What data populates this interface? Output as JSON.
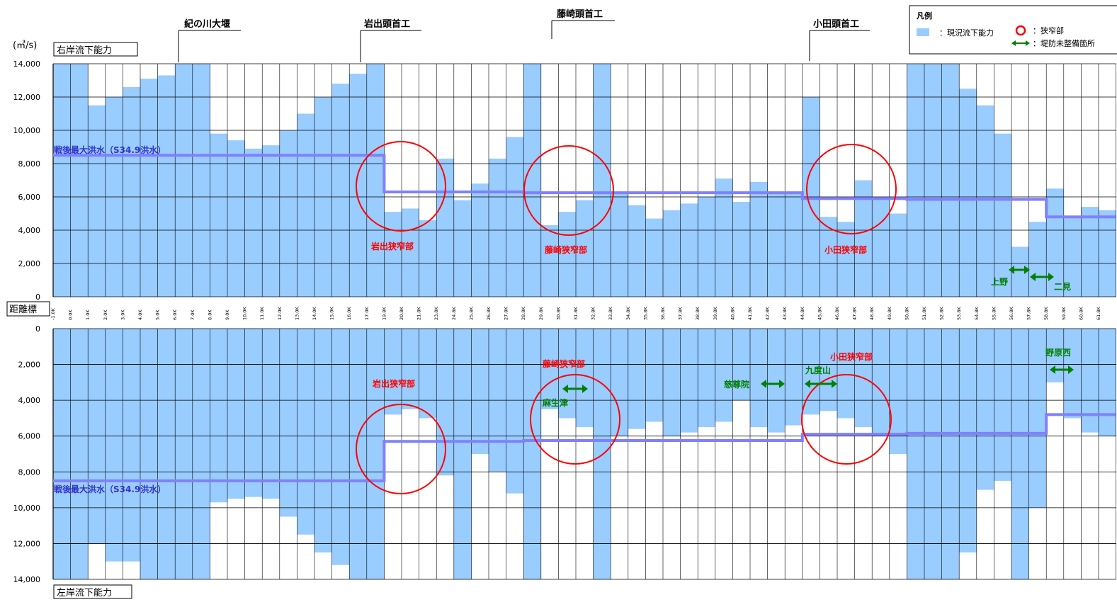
{
  "chart_data": [
    {
      "type": "bar",
      "name": "右岸",
      "panel_label": "右岸流下能力",
      "unit": "(㎥/s)",
      "ylim": [
        0,
        14000
      ],
      "y_ticks": [
        "0",
        "2,000",
        "4,000",
        "6,000",
        "8,000",
        "10,000",
        "12,000",
        "14,000"
      ],
      "x_label": "距離標",
      "x_ticks": [
        "-1.0K",
        "0.0K",
        "1.0K",
        "2.0K",
        "3.0K",
        "4.0K",
        "5.0K",
        "6.0K",
        "7.0K",
        "8.0K",
        "9.0K",
        "10.0K",
        "11.0K",
        "12.0K",
        "13.0K",
        "14.0K",
        "15.0K",
        "16.0K",
        "17.0K",
        "19.8K",
        "20.8K",
        "21.8K",
        "23.8K",
        "24.8K",
        "25.8K",
        "26.8K",
        "27.8K",
        "28.8K",
        "29.8K",
        "30.8K",
        "31.8K",
        "32.8K",
        "33.8K",
        "34.8K",
        "35.8K",
        "36.8K",
        "37.8K",
        "38.8K",
        "39.8K",
        "40.8K",
        "41.8K",
        "42.8K",
        "43.8K",
        "44.8K",
        "45.8K",
        "46.8K",
        "47.8K",
        "48.8K",
        "49.8K",
        "50.8K",
        "51.8K",
        "52.8K",
        "53.8K",
        "54.8K",
        "55.8K",
        "56.8K",
        "57.8K",
        "58.8K",
        "59.8K",
        "60.8K",
        "61.8K"
      ],
      "capacity": [
        14200,
        14200,
        11500,
        12000,
        12600,
        13100,
        13300,
        14200,
        14200,
        9800,
        9400,
        8900,
        9100,
        10000,
        11000,
        12000,
        12800,
        13400,
        14200,
        5100,
        5300,
        4600,
        8300,
        5800,
        6800,
        8300,
        9600,
        14200,
        4300,
        5100,
        5800,
        14200,
        6200,
        5500,
        4700,
        5200,
        5600,
        6000,
        7100,
        5700,
        6900,
        6300,
        6200,
        12000,
        4800,
        4500,
        7000,
        6000,
        5000,
        14200,
        14200,
        14200,
        12500,
        11500,
        9800,
        3000,
        4500,
        6500,
        4800,
        5400,
        5200
      ],
      "series": [
        {
          "name": "戦後最大洪水（S34.9洪水）",
          "values": [
            8500,
            8500,
            8500,
            8500,
            8500,
            8500,
            8500,
            8500,
            8500,
            8500,
            8500,
            8500,
            8500,
            8500,
            8500,
            8500,
            8500,
            8500,
            8500,
            6300,
            6300,
            6300,
            6300,
            6300,
            6300,
            6300,
            6300,
            6250,
            6250,
            6250,
            6250,
            6250,
            6250,
            6250,
            6250,
            6250,
            6250,
            6250,
            6250,
            6250,
            6250,
            6250,
            6250,
            5900,
            5900,
            5900,
            5900,
            5900,
            5900,
            5850,
            5850,
            5850,
            5850,
            5850,
            5850,
            5850,
            5850,
            4800,
            4800,
            4800,
            4800
          ]
        }
      ]
    },
    {
      "type": "bar",
      "name": "左岸",
      "panel_label": "左岸流下能力",
      "ylim": [
        0,
        14000
      ],
      "y_ticks": [
        "0",
        "2,000",
        "4,000",
        "6,000",
        "8,000",
        "10,000",
        "12,000",
        "14,000"
      ],
      "capacity": [
        14200,
        14200,
        12000,
        13000,
        13000,
        14200,
        14200,
        14200,
        14200,
        9700,
        9500,
        9400,
        9500,
        10500,
        11500,
        12500,
        13200,
        14000,
        14200,
        4800,
        4500,
        5000,
        8200,
        14200,
        7000,
        8000,
        9200,
        14200,
        4500,
        5000,
        5500,
        14200,
        6000,
        5600,
        5200,
        6000,
        5800,
        5500,
        5200,
        4000,
        5500,
        5800,
        5400,
        4800,
        4600,
        5000,
        5500,
        6000,
        7000,
        14200,
        14200,
        14200,
        12500,
        9000,
        8500,
        14200,
        10000,
        3000,
        5000,
        5800,
        6000
      ],
      "series": [
        {
          "name": "戦後最大洪水（S34.9洪水）",
          "values": [
            8500,
            8500,
            8500,
            8500,
            8500,
            8500,
            8500,
            8500,
            8500,
            8500,
            8500,
            8500,
            8500,
            8500,
            8500,
            8500,
            8500,
            8500,
            8500,
            6300,
            6300,
            6300,
            6300,
            6300,
            6300,
            6300,
            6300,
            6250,
            6250,
            6250,
            6250,
            6250,
            6250,
            6250,
            6250,
            6250,
            6250,
            6250,
            6250,
            6250,
            6250,
            6250,
            6250,
            5900,
            5900,
            5900,
            5900,
            5900,
            5900,
            5850,
            5850,
            5850,
            5850,
            5850,
            5850,
            5850,
            5850,
            4800,
            4800,
            4800,
            4800
          ]
        }
      ]
    }
  ],
  "colors": {
    "capacity": "#99ccff",
    "flood_line": "#8080ff",
    "narrow_circle": "#ff0000",
    "levee_arrow": "#008000"
  },
  "labels": {
    "unit": "(㎥/s)",
    "right_bank": "右岸流下能力",
    "left_bank": "左岸流下能力",
    "distance_marker": "距離標",
    "flood_label": "戦後最大洪水（S34.9洪水）",
    "structures": [
      "紀の川大堰",
      "岩出頭首工",
      "藤崎頭首工",
      "小田頭首工"
    ],
    "narrow_upper": [
      "岩出狭窄部",
      "藤崎狭窄部",
      "小田狭窄部"
    ],
    "narrow_lower": [
      "岩出狭窄部",
      "藤崎狭窄部",
      "小田狭窄部"
    ],
    "levee_upper": [
      "上野",
      "二見"
    ],
    "levee_lower": [
      "麻生津",
      "慈尊院",
      "九度山",
      "野原西"
    ]
  },
  "legend": {
    "title": "凡例",
    "capacity": "：現況流下能力",
    "narrow": "：狭窄部",
    "levee": "：堤防未整備箇所"
  }
}
